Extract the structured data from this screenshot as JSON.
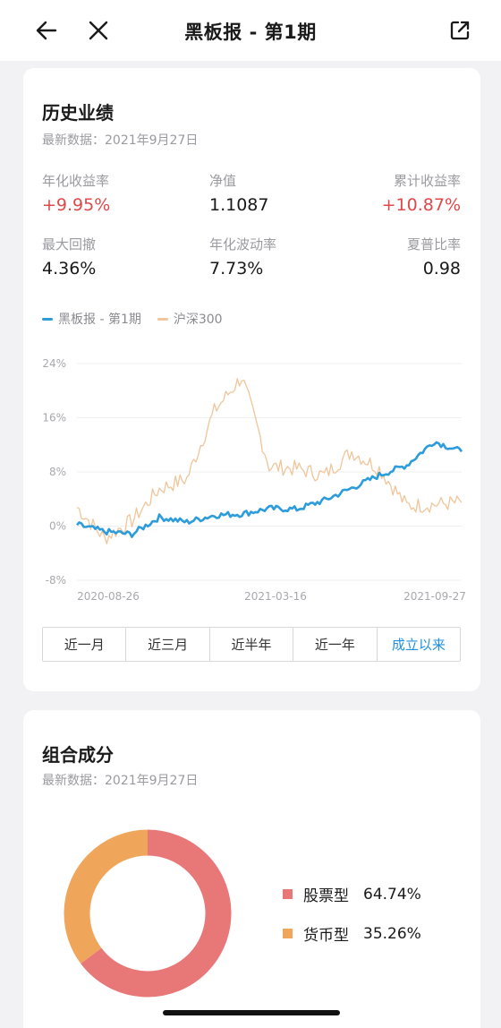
{
  "nav": {
    "title": "黑板报 - 第1期",
    "back_icon": "arrow-left-icon",
    "close_icon": "close-icon",
    "share_icon": "share-external-icon"
  },
  "performance": {
    "title": "历史业绩",
    "updated": "最新数据：2021年9月27日",
    "metrics": [
      {
        "label": "年化收益率",
        "value": "+9.95%",
        "color": "#e0484a"
      },
      {
        "label": "净值",
        "value": "1.1087"
      },
      {
        "label": "累计收益率",
        "value": "+10.87%",
        "color": "#e0484a"
      },
      {
        "label": "最大回撤",
        "value": "4.36%"
      },
      {
        "label": "年化波动率",
        "value": "7.73%"
      },
      {
        "label": "夏普比率",
        "value": "0.98"
      }
    ],
    "tabs": [
      "近一月",
      "近三月",
      "近半年",
      "近一年",
      "成立以来"
    ],
    "active_tab": "成立以来"
  },
  "chart_data": {
    "type": "line",
    "title": "",
    "xlabel": "",
    "ylabel": "",
    "x_ticks": [
      "2020-08-26",
      "2021-03-16",
      "2021-09-27"
    ],
    "y_ticks": [
      "24%",
      "16%",
      "8%",
      "0%",
      "-8%"
    ],
    "ylim": [
      -8,
      24
    ],
    "x": [
      "2020-08-26",
      "2020-09-25",
      "2020-10-25",
      "2020-11-24",
      "2020-12-24",
      "2021-01-23",
      "2021-02-22",
      "2021-03-16",
      "2021-04-14",
      "2021-05-14",
      "2021-06-13",
      "2021-07-13",
      "2021-08-12",
      "2021-09-11",
      "2021-09-27"
    ],
    "series": [
      {
        "name": "黑板报 - 第1期",
        "color": "#2d9cdb",
        "values": [
          0.2,
          -0.8,
          -1.2,
          1.3,
          0.6,
          1.6,
          1.8,
          2.6,
          2.5,
          3.8,
          5.6,
          7.5,
          9.0,
          12.5,
          11.0
        ]
      },
      {
        "name": "沪深300",
        "color": "#f0c59a",
        "values": [
          2.8,
          -1.8,
          0.8,
          5.5,
          7.0,
          17.0,
          22.0,
          8.8,
          8.5,
          7.5,
          11.0,
          8.5,
          3.0,
          3.2,
          3.5
        ]
      }
    ],
    "legend": "top-left",
    "grid": true
  },
  "composition": {
    "title": "组合成分",
    "updated": "最新数据：2021年9月27日",
    "items": [
      {
        "name": "股票型",
        "percent": "64.74%",
        "value": 64.74,
        "color": "#e87878"
      },
      {
        "name": "货币型",
        "percent": "35.26%",
        "value": 35.26,
        "color": "#f0a65a"
      }
    ]
  }
}
